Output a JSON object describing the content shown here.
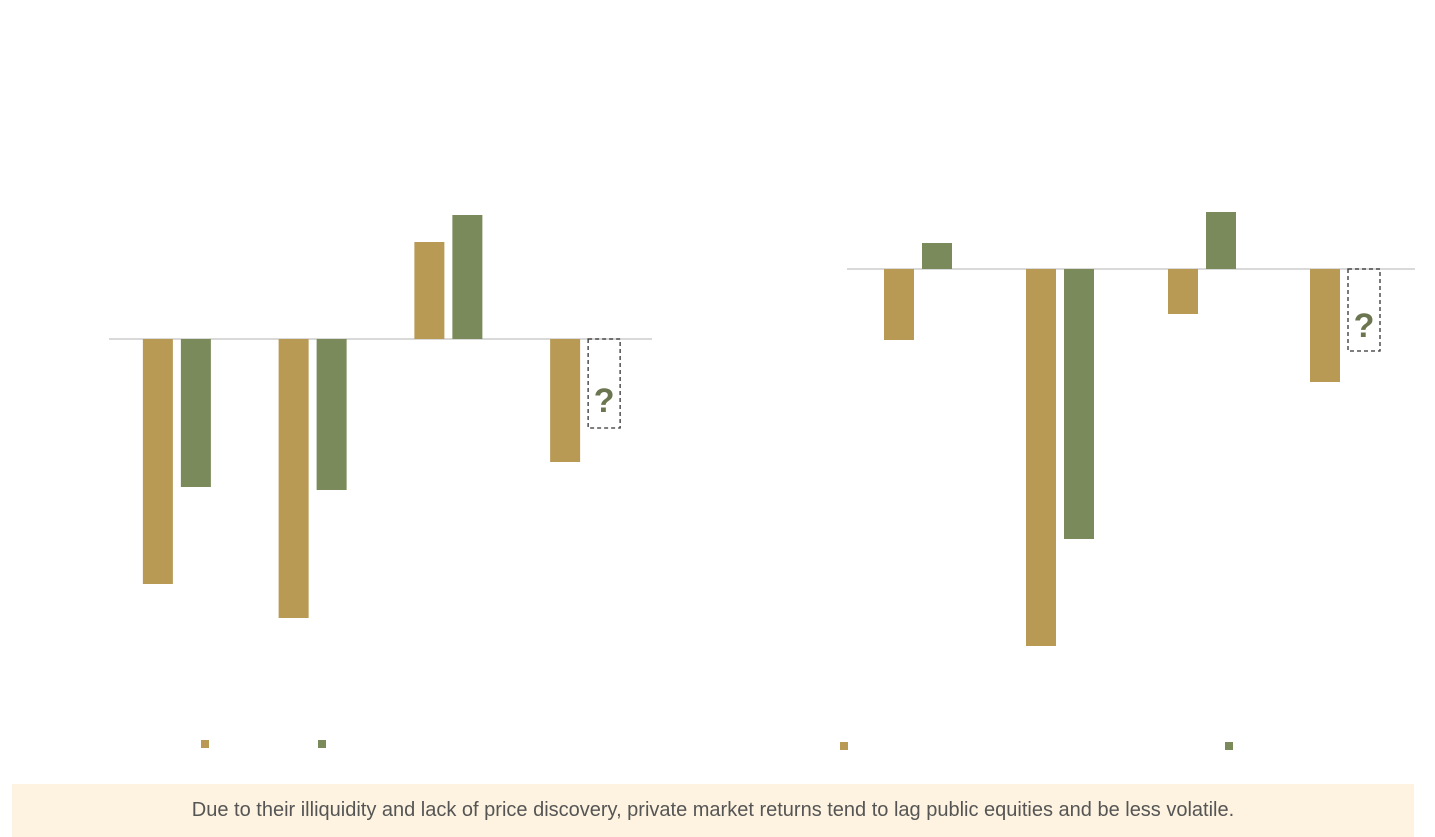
{
  "charts": [
    {
      "chart_data": {
        "type": "bar",
        "categories": [
          null,
          null,
          null,
          null
        ],
        "ylim": [
          -36.1,
          20.9
        ],
        "annotation": "?",
        "series": [
          {
            "color": "#b89a55",
            "values": [
              -24.5,
              -27.9,
              9.7,
              -12.3
            ]
          },
          {
            "color": "#7a8a5a",
            "values": [
              -14.8,
              -15.1,
              12.4,
              null
            ]
          }
        ]
      }
    },
    {
      "chart_data": {
        "type": "bar",
        "categories": [
          null,
          null,
          null,
          null
        ],
        "ylim": [
          -43.1,
          13.9
        ],
        "annotation": "?",
        "series": [
          {
            "color": "#b89a55",
            "values": [
              -7.1,
              -37.7,
              -4.5,
              -11.3
            ]
          },
          {
            "color": "#7a8a5a",
            "values": [
              2.6,
              -27.0,
              5.7,
              null
            ]
          }
        ]
      }
    }
  ],
  "footer": "Due to their illiquidity and lack of price discovery, private market returns tend to lag public equities and be less volatile."
}
